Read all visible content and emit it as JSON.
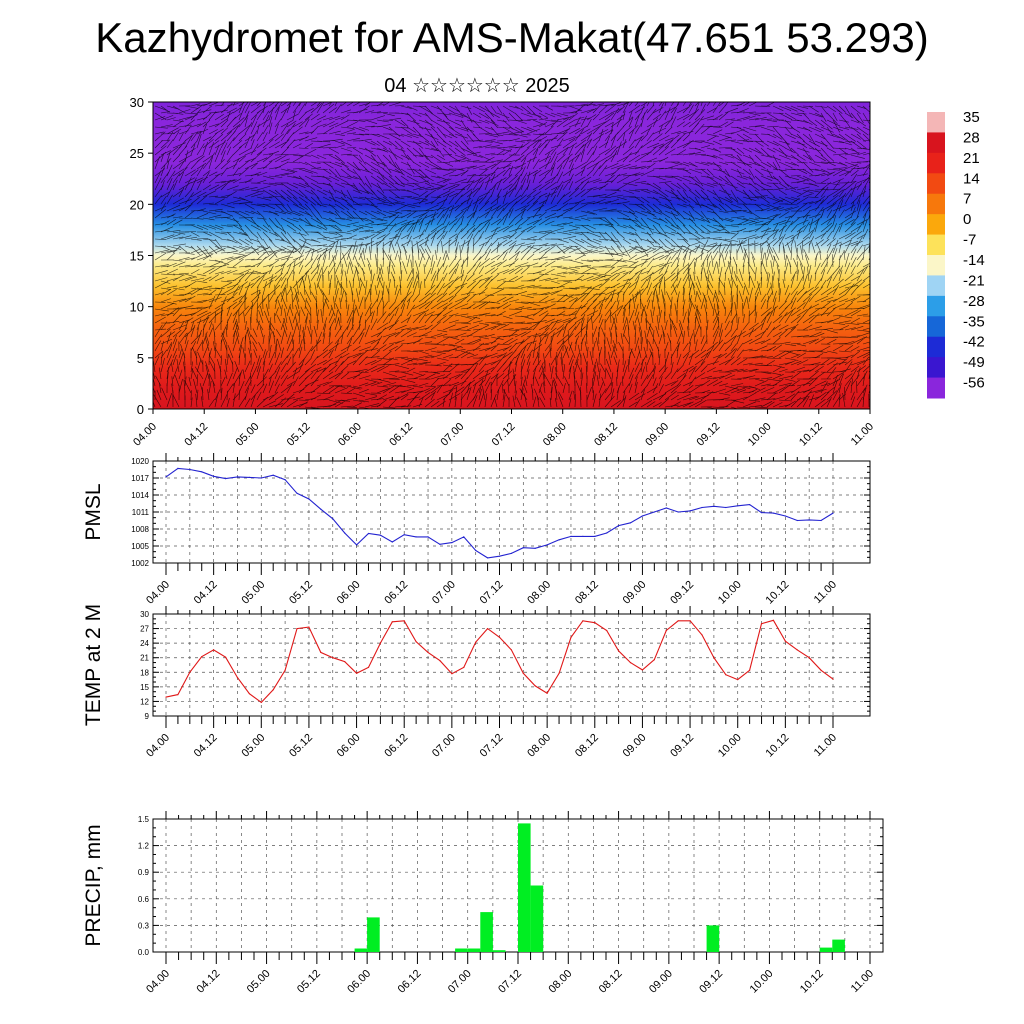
{
  "header": {
    "title": "Kazhydromet for AMS-Makat(47.651 53.293)",
    "date_line": "04 ☆☆☆☆☆☆ 2025"
  },
  "time_axis": [
    "04.00",
    "04.12",
    "05.00",
    "05.12",
    "06.00",
    "06.12",
    "07.00",
    "07.12",
    "08.00",
    "08.12",
    "09.00",
    "09.12",
    "10.00",
    "10.12",
    "11.00"
  ],
  "chart_data": [
    {
      "type": "heatmap",
      "title": "",
      "ylabel": "",
      "ylim": [
        0,
        30
      ],
      "y_ticks": [
        "0",
        "5",
        "10",
        "15",
        "20",
        "25",
        "30"
      ],
      "x_ticks": [
        "04.00",
        "04.12",
        "05.00",
        "05.12",
        "06.00",
        "06.12",
        "07.00",
        "07.12",
        "08.00",
        "08.12",
        "09.00",
        "09.12",
        "10.00",
        "10.12",
        "11.00"
      ],
      "temperature_profile": {
        "levels": [
          0,
          2,
          4,
          6,
          8,
          10,
          12,
          14,
          15,
          16,
          18,
          20,
          22,
          24,
          26,
          28,
          30
        ],
        "values": [
          28,
          25,
          20,
          14,
          10,
          5,
          -3,
          -10,
          -14,
          -20,
          -30,
          -42,
          -53,
          -60,
          -62,
          -58,
          -55
        ]
      },
      "colorbar": {
        "labels": [
          "35",
          "28",
          "21",
          "14",
          "7",
          "0",
          "-7",
          "-14",
          "-21",
          "-28",
          "-35",
          "-42",
          "-49",
          "-56"
        ],
        "colors": [
          "#f4b6b6",
          "#d8141e",
          "#e8221a",
          "#f24a12",
          "#f7780c",
          "#fba80c",
          "#fde25a",
          "#fbf6c8",
          "#9fd4f4",
          "#2c9ee8",
          "#1667d8",
          "#1d2bd6",
          "#3a16d0",
          "#8a26dc"
        ]
      },
      "wind_barbs": true
    },
    {
      "type": "line",
      "ylabel": "PMSL",
      "ylim": [
        1002,
        1020
      ],
      "y_ticks": [
        "1002",
        "1005",
        "1008",
        "1011",
        "1014",
        "1017",
        "1020"
      ],
      "x_ticks": [
        "04.00",
        "04.12",
        "05.00",
        "05.12",
        "06.00",
        "06.12",
        "07.00",
        "07.12",
        "08.00",
        "08.12",
        "09.00",
        "09.12",
        "10.00",
        "10.12",
        "11.00"
      ],
      "grid": true,
      "series": [
        {
          "color": "#2222d0",
          "x": [
            0,
            3,
            6,
            9,
            12,
            15,
            18,
            21,
            24,
            27,
            30,
            33,
            36,
            39,
            42,
            45,
            48,
            51,
            54,
            57,
            60,
            63,
            66,
            69,
            72,
            75,
            78,
            81,
            84,
            87,
            90,
            93,
            96,
            99,
            102,
            105,
            108,
            111,
            114,
            117,
            120,
            123,
            126,
            129,
            132,
            135,
            138,
            141,
            144,
            147,
            150,
            153,
            156,
            159,
            162,
            165,
            168
          ],
          "values": [
            1017.2,
            1018.7,
            1018.5,
            1018.1,
            1017.3,
            1016.9,
            1017.2,
            1017.1,
            1017.0,
            1017.5,
            1016.7,
            1014.3,
            1013.3,
            1011.5,
            1009.8,
            1007.3,
            1005.2,
            1007.2,
            1006.9,
            1005.7,
            1007.0,
            1006.6,
            1006.6,
            1005.3,
            1005.6,
            1006.6,
            1004.2,
            1002.9,
            1003.2,
            1003.7,
            1004.7,
            1004.6,
            1005.2,
            1006.1,
            1006.7,
            1006.7,
            1006.7,
            1007.3,
            1008.6,
            1009.1,
            1010.3,
            1011.0,
            1011.7,
            1011.0,
            1011.2,
            1011.8,
            1012.0,
            1011.8,
            1012.1,
            1012.3,
            1010.9,
            1010.8,
            1010.3,
            1009.5,
            1009.6,
            1009.5,
            1010.8
          ]
        }
      ]
    },
    {
      "type": "line",
      "ylabel": "TEMP at 2 M",
      "ylim": [
        9,
        30
      ],
      "y_ticks": [
        "9",
        "12",
        "15",
        "18",
        "21",
        "24",
        "27",
        "30"
      ],
      "x_ticks": [
        "04.00",
        "04.12",
        "05.00",
        "05.12",
        "06.00",
        "06.12",
        "07.00",
        "07.12",
        "08.00",
        "08.12",
        "09.00",
        "09.12",
        "10.00",
        "10.12",
        "11.00"
      ],
      "grid": true,
      "series": [
        {
          "color": "#e01818",
          "x": [
            0,
            3,
            6,
            9,
            12,
            15,
            18,
            21,
            24,
            27,
            30,
            33,
            36,
            39,
            42,
            45,
            48,
            51,
            54,
            57,
            60,
            63,
            66,
            69,
            72,
            75,
            78,
            81,
            84,
            87,
            90,
            93,
            96,
            99,
            102,
            105,
            108,
            111,
            114,
            117,
            120,
            123,
            126,
            129,
            132,
            135,
            138,
            141,
            144,
            147,
            150,
            153,
            156,
            159,
            162,
            165,
            168
          ],
          "values": [
            12.9,
            13.4,
            18.0,
            21.2,
            22.6,
            21.1,
            16.9,
            13.6,
            11.8,
            14.4,
            18.4,
            27.0,
            27.3,
            22.1,
            21.0,
            20.2,
            17.8,
            19.0,
            24.0,
            28.4,
            28.6,
            24.3,
            22.1,
            20.4,
            17.7,
            19.0,
            24.2,
            27.0,
            25.2,
            22.6,
            17.8,
            15.2,
            13.7,
            17.8,
            25.2,
            28.6,
            28.2,
            26.6,
            22.4,
            20.0,
            18.5,
            20.6,
            26.6,
            28.6,
            28.6,
            25.7,
            21.0,
            17.5,
            16.5,
            18.4,
            28.0,
            28.7,
            24.4,
            22.6,
            21.0,
            18.4,
            16.6
          ]
        }
      ]
    },
    {
      "type": "bar",
      "ylabel": "PRECIP, mm",
      "ylim": [
        0,
        1.5
      ],
      "y_ticks": [
        "0.0",
        "0.3",
        "0.6",
        "0.9",
        "1.2",
        "1.5"
      ],
      "x_ticks": [
        "04.00",
        "04.12",
        "05.00",
        "05.12",
        "06.00",
        "06.12",
        "07.00",
        "07.12",
        "08.00",
        "08.12",
        "09.00",
        "09.12",
        "10.00",
        "10.12",
        "11.00"
      ],
      "grid": true,
      "series": [
        {
          "color": "#00ee22",
          "bin_start_hours": [
            45,
            48,
            69,
            72,
            75,
            78,
            84,
            87,
            129,
            156,
            159
          ],
          "values": [
            0.04,
            0.39,
            0.04,
            0.04,
            0.45,
            0.02,
            1.45,
            0.75,
            0.3,
            0.05,
            0.14
          ]
        }
      ]
    }
  ]
}
